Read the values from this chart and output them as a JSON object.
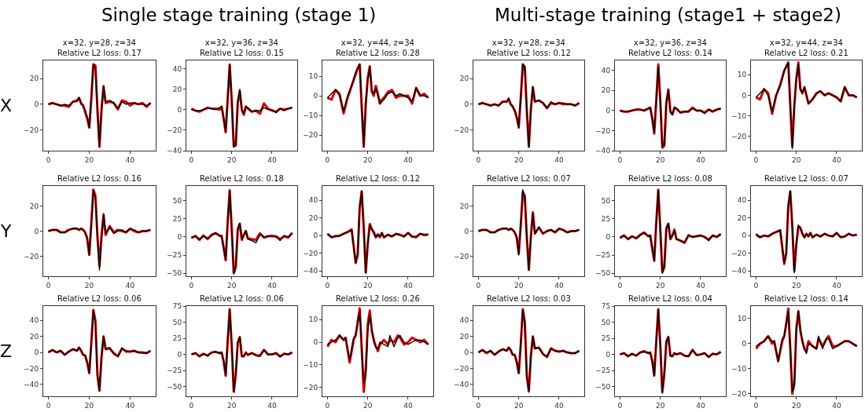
{
  "chart_data": [
    {
      "type": "line",
      "title": "x=32, y=28, z=34\nRelative L2 loss: 0.17",
      "ylabel": "X",
      "annotations": [
        "Single stage training (stage 1)"
      ],
      "x": [
        0,
        2,
        4,
        6,
        8,
        10,
        12,
        14,
        15,
        16,
        17,
        18,
        19,
        20,
        21,
        22,
        23,
        24,
        25,
        26,
        27,
        28,
        30,
        32,
        34,
        36,
        38,
        40,
        42,
        44,
        46,
        48,
        50
      ],
      "xlim": [
        -2.5,
        52.5
      ],
      "xticks": [
        0,
        20,
        40
      ],
      "ylim": [
        -36,
        34
      ],
      "yticks": [
        -20,
        0,
        20
      ],
      "grid": false,
      "legend": false,
      "series": [
        {
          "color": "#000000",
          "values": [
            0,
            1,
            0,
            -1,
            0,
            -1,
            2,
            2,
            5,
            0,
            -1,
            -5,
            -10,
            -18,
            5,
            31,
            29,
            -5,
            -33,
            -5,
            14,
            2,
            3,
            1,
            -3,
            2,
            0,
            1,
            1,
            0,
            0,
            -1,
            1
          ]
        },
        {
          "color": "#d00000",
          "values": [
            0,
            1,
            0,
            -1,
            -1,
            -2,
            2,
            3,
            5,
            1,
            -1,
            -6,
            -11,
            -18,
            4,
            31,
            30,
            -4,
            -33,
            -4,
            14,
            1,
            2,
            1,
            -4,
            3,
            2,
            -1,
            1,
            0,
            1,
            -2,
            1
          ]
        }
      ]
    },
    {
      "type": "line",
      "title": "x=32, y=36, z=34\nRelative L2 loss: 0.15",
      "x": [
        0,
        2,
        4,
        6,
        8,
        10,
        12,
        14,
        15,
        16,
        17,
        18,
        19,
        20,
        21,
        22,
        23,
        24,
        25,
        26,
        27,
        28,
        30,
        32,
        34,
        36,
        38,
        40,
        42,
        44,
        46,
        48,
        50
      ],
      "xlim": [
        -2.5,
        52.5
      ],
      "xticks": [
        0,
        20,
        40
      ],
      "ylim": [
        -40,
        48
      ],
      "yticks": [
        -40,
        -20,
        0,
        20,
        40
      ],
      "grid": false,
      "legend": false,
      "series": [
        {
          "color": "#000000",
          "values": [
            0,
            -1,
            -1,
            0,
            1,
            1,
            0,
            2,
            3,
            -8,
            -22,
            10,
            44,
            10,
            -36,
            -34,
            8,
            20,
            -1,
            -4,
            3,
            2,
            -2,
            -1,
            -1,
            2,
            0,
            0,
            -3,
            1,
            -1,
            1,
            2
          ]
        },
        {
          "color": "#d00000",
          "values": [
            1,
            -1,
            -2,
            0,
            2,
            1,
            1,
            0,
            3,
            -9,
            -22,
            11,
            44,
            9,
            -36,
            -35,
            7,
            18,
            0,
            -5,
            3,
            1,
            -2,
            -1,
            -4,
            6,
            1,
            -1,
            -2,
            1,
            0,
            1,
            2
          ]
        }
      ]
    },
    {
      "type": "line",
      "title": "x=32, y=44, z=34\nRelative L2 loss: 0.28",
      "x": [
        0,
        2,
        4,
        6,
        8,
        10,
        12,
        14,
        15,
        16,
        17,
        18,
        19,
        20,
        21,
        22,
        23,
        24,
        25,
        26,
        27,
        28,
        30,
        32,
        34,
        36,
        38,
        40,
        42,
        44,
        46,
        48,
        50
      ],
      "xlim": [
        -2.5,
        52.5
      ],
      "xticks": [
        0,
        20,
        40
      ],
      "ylim": [
        -28,
        18
      ],
      "yticks": [
        -20,
        -10,
        0,
        10
      ],
      "grid": false,
      "legend": false,
      "series": [
        {
          "color": "#000000",
          "values": [
            -1,
            1,
            3,
            0,
            -8,
            0,
            5,
            12,
            14,
            16,
            -5,
            -26,
            -5,
            8,
            15,
            3,
            1,
            4,
            0,
            -4,
            -3,
            -2,
            1,
            2,
            0,
            1,
            0,
            -1,
            -3,
            4,
            0,
            0,
            -1
          ]
        },
        {
          "color": "#d00000",
          "values": [
            -1,
            -2,
            3,
            1,
            -9,
            -1,
            5,
            11,
            14,
            16,
            -6,
            -26,
            -4,
            9,
            15,
            2,
            0,
            5,
            1,
            -4,
            -2,
            -1,
            2,
            3,
            -1,
            0,
            0,
            0,
            -4,
            4,
            0,
            1,
            -1
          ]
        }
      ]
    },
    {
      "type": "line",
      "title": "x=32, y=28, z=34\nRelative L2 loss: 0.12",
      "annotations": [
        "Multi-stage training (stage1 + stage2)"
      ],
      "x": [
        0,
        2,
        4,
        6,
        8,
        10,
        12,
        14,
        15,
        16,
        17,
        18,
        19,
        20,
        21,
        22,
        23,
        24,
        25,
        26,
        27,
        28,
        30,
        32,
        34,
        36,
        38,
        40,
        42,
        44,
        46,
        48,
        50
      ],
      "xlim": [
        -2.5,
        52.5
      ],
      "xticks": [
        0,
        20,
        40
      ],
      "ylim": [
        -36,
        34
      ],
      "yticks": [
        -20,
        0,
        20
      ],
      "grid": false,
      "legend": false,
      "series": [
        {
          "color": "#000000",
          "values": [
            0,
            1,
            0,
            -1,
            0,
            -1,
            2,
            2,
            5,
            0,
            -1,
            -5,
            -10,
            -18,
            5,
            31,
            29,
            -5,
            -33,
            -5,
            14,
            2,
            3,
            1,
            -3,
            2,
            0,
            1,
            1,
            0,
            0,
            -1,
            1
          ]
        },
        {
          "color": "#d00000",
          "values": [
            0,
            1,
            0,
            -1,
            0,
            -1,
            2,
            2,
            4,
            0,
            -2,
            -5,
            -10,
            -18,
            5,
            31,
            29,
            -5,
            -33,
            -4,
            13,
            2,
            3,
            1,
            -3,
            1,
            0,
            1,
            0,
            0,
            0,
            -1,
            1
          ]
        }
      ]
    },
    {
      "type": "line",
      "title": "x=32, y=36, z=34\nRelative L2 loss: 0.14",
      "x": [
        0,
        2,
        4,
        6,
        8,
        10,
        12,
        14,
        15,
        16,
        17,
        18,
        19,
        20,
        21,
        22,
        23,
        24,
        25,
        26,
        27,
        28,
        30,
        32,
        34,
        36,
        38,
        40,
        42,
        44,
        46,
        48,
        50
      ],
      "xlim": [
        -2.5,
        52.5
      ],
      "xticks": [
        0,
        20,
        40
      ],
      "ylim": [
        -40,
        50
      ],
      "yticks": [
        -40,
        -20,
        0,
        20,
        40
      ],
      "grid": false,
      "legend": false,
      "series": [
        {
          "color": "#000000",
          "values": [
            0,
            -1,
            -1,
            0,
            1,
            1,
            0,
            2,
            3,
            -8,
            -22,
            10,
            44,
            10,
            -36,
            -34,
            8,
            20,
            -1,
            -4,
            3,
            2,
            -2,
            -1,
            -1,
            2,
            0,
            0,
            -3,
            1,
            -1,
            1,
            2
          ]
        },
        {
          "color": "#d00000",
          "values": [
            0,
            -1,
            -1,
            0,
            1,
            1,
            0,
            2,
            3,
            -8,
            -23,
            10,
            46,
            10,
            -37,
            -35,
            8,
            21,
            -1,
            -4,
            3,
            2,
            -2,
            -1,
            -1,
            3,
            0,
            0,
            -2,
            1,
            -1,
            1,
            2
          ]
        }
      ]
    },
    {
      "type": "line",
      "title": "x=32, y=44, z=34\nRelative L2 loss: 0.21",
      "x": [
        0,
        2,
        4,
        6,
        8,
        10,
        12,
        14,
        15,
        16,
        17,
        18,
        19,
        20,
        21,
        22,
        23,
        24,
        25,
        26,
        27,
        28,
        30,
        32,
        34,
        36,
        38,
        40,
        42,
        44,
        46,
        48,
        50
      ],
      "xlim": [
        -2.5,
        52.5
      ],
      "xticks": [
        0,
        20,
        40
      ],
      "ylim": [
        -27,
        17
      ],
      "yticks": [
        -20,
        -10,
        0,
        10
      ],
      "grid": false,
      "legend": false,
      "series": [
        {
          "color": "#000000",
          "values": [
            -1,
            1,
            3,
            0,
            -8,
            0,
            5,
            12,
            14,
            16,
            -5,
            -26,
            -5,
            8,
            15,
            3,
            1,
            4,
            0,
            -4,
            -3,
            -2,
            1,
            2,
            0,
            1,
            0,
            -1,
            -3,
            4,
            0,
            0,
            -1
          ]
        },
        {
          "color": "#d00000",
          "values": [
            -1,
            -2,
            3,
            1,
            -9,
            0,
            5,
            12,
            14,
            16,
            -5,
            -25,
            -5,
            8,
            16,
            3,
            1,
            4,
            0,
            -4,
            -3,
            -2,
            1,
            2,
            0,
            1,
            0,
            -1,
            -3,
            4,
            0,
            0,
            -1
          ]
        }
      ]
    },
    {
      "type": "line",
      "title": "Relative L2 loss: 0.16",
      "ylabel": "Y",
      "x": [
        0,
        2,
        4,
        6,
        8,
        10,
        12,
        14,
        15,
        16,
        17,
        18,
        19,
        20,
        21,
        22,
        23,
        24,
        25,
        26,
        27,
        28,
        30,
        32,
        34,
        36,
        38,
        40,
        42,
        44,
        46,
        48,
        50
      ],
      "xlim": [
        -2.5,
        52.5
      ],
      "xticks": [
        0,
        20,
        40
      ],
      "ylim": [
        -36,
        36
      ],
      "yticks": [
        -20,
        0,
        20
      ],
      "grid": false,
      "legend": false,
      "series": [
        {
          "color": "#000000",
          "values": [
            0,
            1,
            1,
            -1,
            -1,
            1,
            2,
            2,
            1,
            2,
            1,
            -1,
            -5,
            -19,
            5,
            33,
            27,
            -5,
            -31,
            -5,
            14,
            -2,
            3,
            -2,
            0,
            1,
            -1,
            2,
            1,
            -1,
            0,
            0,
            1
          ]
        },
        {
          "color": "#d00000",
          "values": [
            0,
            1,
            1,
            -1,
            -1,
            1,
            2,
            2,
            1,
            2,
            1,
            -1,
            -6,
            -19,
            6,
            33,
            28,
            -4,
            -28,
            -4,
            13,
            -3,
            4,
            -1,
            1,
            0,
            -1,
            2,
            0,
            -1,
            0,
            0,
            1
          ]
        }
      ]
    },
    {
      "type": "line",
      "title": "Relative L2 loss: 0.18",
      "x": [
        0,
        2,
        4,
        6,
        8,
        10,
        12,
        14,
        15,
        16,
        17,
        18,
        19,
        20,
        21,
        22,
        23,
        24,
        25,
        26,
        27,
        28,
        30,
        32,
        34,
        36,
        38,
        40,
        42,
        44,
        46,
        48,
        50
      ],
      "xlim": [
        -2.5,
        52.5
      ],
      "xticks": [
        0,
        20,
        40
      ],
      "ylim": [
        -54,
        70
      ],
      "yticks": [
        -50,
        -25,
        0,
        25,
        50
      ],
      "grid": false,
      "legend": false,
      "series": [
        {
          "color": "#000000",
          "values": [
            -2,
            2,
            -3,
            1,
            -2,
            2,
            6,
            1,
            2,
            -15,
            -32,
            20,
            64,
            10,
            -50,
            -40,
            12,
            19,
            -3,
            2,
            9,
            -3,
            -5,
            -8,
            3,
            0,
            1,
            2,
            0,
            -5,
            2,
            0,
            4
          ]
        },
        {
          "color": "#d00000",
          "values": [
            -1,
            1,
            -4,
            2,
            -3,
            3,
            5,
            2,
            1,
            -15,
            -32,
            21,
            64,
            11,
            -50,
            -42,
            10,
            18,
            -4,
            3,
            8,
            -2,
            -3,
            -4,
            5,
            -1,
            1,
            1,
            1,
            -3,
            1,
            -1,
            6
          ]
        }
      ]
    },
    {
      "type": "line",
      "title": "Relative L2 loss: 0.12",
      "x": [
        0,
        2,
        4,
        6,
        8,
        10,
        12,
        14,
        15,
        16,
        17,
        18,
        19,
        20,
        21,
        22,
        23,
        24,
        25,
        26,
        27,
        28,
        30,
        32,
        34,
        36,
        38,
        40,
        42,
        44,
        46,
        48,
        50
      ],
      "xlim": [
        -2.5,
        52.5
      ],
      "xticks": [
        0,
        20,
        40
      ],
      "ylim": [
        -46,
        56
      ],
      "yticks": [
        -40,
        -20,
        0,
        20,
        40
      ],
      "grid": false,
      "legend": false,
      "series": [
        {
          "color": "#000000",
          "values": [
            2,
            -2,
            0,
            -1,
            2,
            4,
            6,
            -31,
            -20,
            33,
            50,
            10,
            -42,
            -10,
            12,
            8,
            2,
            -2,
            2,
            -1,
            3,
            -2,
            1,
            -1,
            2,
            0,
            -1,
            3,
            -2,
            -1,
            2,
            0,
            1
          ]
        },
        {
          "color": "#d00000",
          "values": [
            2,
            -2,
            -1,
            0,
            2,
            4,
            7,
            -31,
            -22,
            32,
            50,
            9,
            -42,
            -9,
            13,
            7,
            4,
            -2,
            1,
            -2,
            3,
            -2,
            1,
            -1,
            2,
            1,
            -1,
            3,
            -1,
            -2,
            2,
            1,
            1
          ]
        }
      ]
    },
    {
      "type": "line",
      "title": "Relative L2 loss: 0.07",
      "x": [
        0,
        2,
        4,
        6,
        8,
        10,
        12,
        14,
        15,
        16,
        17,
        18,
        19,
        20,
        21,
        22,
        23,
        24,
        25,
        26,
        27,
        28,
        30,
        32,
        34,
        36,
        38,
        40,
        42,
        44,
        46,
        48,
        50
      ],
      "xlim": [
        -2.5,
        52.5
      ],
      "xticks": [
        0,
        20,
        40
      ],
      "ylim": [
        -36,
        36
      ],
      "yticks": [
        -20,
        0,
        20
      ],
      "grid": false,
      "legend": false,
      "series": [
        {
          "color": "#000000",
          "values": [
            0,
            1,
            1,
            -1,
            -1,
            1,
            2,
            2,
            1,
            2,
            1,
            -1,
            -5,
            -19,
            5,
            33,
            27,
            -5,
            -31,
            -5,
            14,
            -2,
            3,
            -2,
            0,
            1,
            -1,
            2,
            1,
            -1,
            0,
            0,
            1
          ]
        },
        {
          "color": "#d00000",
          "values": [
            0,
            1,
            1,
            -1,
            -1,
            1,
            2,
            2,
            1,
            2,
            1,
            -1,
            -5,
            -18,
            5,
            31,
            28,
            -5,
            -31,
            -5,
            15,
            -2,
            3,
            -2,
            0,
            1,
            -1,
            2,
            1,
            -1,
            0,
            0,
            1
          ]
        }
      ]
    },
    {
      "type": "line",
      "title": "Relative L2 loss: 0.08",
      "x": [
        0,
        2,
        4,
        6,
        8,
        10,
        12,
        14,
        15,
        16,
        17,
        18,
        19,
        20,
        21,
        22,
        23,
        24,
        25,
        26,
        27,
        28,
        30,
        32,
        34,
        36,
        38,
        40,
        42,
        44,
        46,
        48,
        50
      ],
      "xlim": [
        -2.5,
        52.5
      ],
      "xticks": [
        0,
        20,
        40
      ],
      "ylim": [
        -54,
        70
      ],
      "yticks": [
        -50,
        -25,
        0,
        25,
        50
      ],
      "grid": false,
      "legend": false,
      "series": [
        {
          "color": "#000000",
          "values": [
            -2,
            2,
            -3,
            1,
            -2,
            2,
            6,
            1,
            2,
            -15,
            -32,
            20,
            64,
            10,
            -50,
            -40,
            12,
            19,
            -3,
            2,
            9,
            -3,
            -5,
            -8,
            3,
            0,
            1,
            2,
            0,
            -5,
            2,
            0,
            4
          ]
        },
        {
          "color": "#d00000",
          "values": [
            -1,
            2,
            -3,
            1,
            -2,
            3,
            6,
            1,
            2,
            -16,
            -33,
            20,
            65,
            10,
            -48,
            -42,
            12,
            18,
            -3,
            2,
            10,
            -3,
            -5,
            -8,
            2,
            0,
            1,
            2,
            0,
            -4,
            2,
            0,
            4
          ]
        }
      ]
    },
    {
      "type": "line",
      "title": "Relative L2 loss: 0.07",
      "x": [
        0,
        2,
        4,
        6,
        8,
        10,
        12,
        14,
        15,
        16,
        17,
        18,
        19,
        20,
        21,
        22,
        23,
        24,
        25,
        26,
        27,
        28,
        30,
        32,
        34,
        36,
        38,
        40,
        42,
        44,
        46,
        48,
        50
      ],
      "xlim": [
        -2.5,
        52.5
      ],
      "xticks": [
        0,
        20,
        40
      ],
      "ylim": [
        -46,
        56
      ],
      "yticks": [
        -40,
        -20,
        0,
        20,
        40
      ],
      "grid": false,
      "legend": false,
      "series": [
        {
          "color": "#000000",
          "values": [
            2,
            -2,
            0,
            -1,
            2,
            4,
            6,
            -31,
            -20,
            33,
            50,
            10,
            -42,
            -10,
            12,
            8,
            2,
            -2,
            2,
            -1,
            3,
            -2,
            1,
            -1,
            2,
            0,
            -1,
            3,
            -2,
            -1,
            2,
            0,
            1
          ]
        },
        {
          "color": "#d00000",
          "values": [
            1,
            -2,
            0,
            -1,
            2,
            4,
            6,
            -32,
            -20,
            33,
            50,
            10,
            -40,
            -10,
            10,
            9,
            2,
            -2,
            2,
            -1,
            3,
            -2,
            1,
            -1,
            2,
            0,
            -1,
            3,
            -2,
            -1,
            2,
            0,
            1
          ]
        }
      ]
    },
    {
      "type": "line",
      "title": "Relative L2 loss: 0.06",
      "ylabel": "Z",
      "x": [
        0,
        2,
        4,
        6,
        8,
        10,
        12,
        14,
        15,
        16,
        17,
        18,
        19,
        20,
        21,
        22,
        23,
        24,
        25,
        26,
        27,
        28,
        30,
        32,
        34,
        36,
        38,
        40,
        42,
        44,
        46,
        48,
        50
      ],
      "xlim": [
        -2.5,
        52.5
      ],
      "xticks": [
        0,
        20,
        40
      ],
      "ylim": [
        -55,
        58
      ],
      "yticks": [
        -40,
        -20,
        0,
        20,
        40
      ],
      "grid": false,
      "legend": false,
      "series": [
        {
          "color": "#000000",
          "values": [
            0,
            3,
            0,
            2,
            -3,
            1,
            4,
            2,
            6,
            3,
            -3,
            -3,
            -12,
            -26,
            10,
            53,
            38,
            -30,
            -48,
            -5,
            20,
            5,
            6,
            -2,
            -5,
            5,
            2,
            1,
            2,
            0,
            -1,
            -1,
            2
          ]
        },
        {
          "color": "#d00000",
          "values": [
            0,
            3,
            0,
            2,
            -3,
            1,
            4,
            2,
            6,
            2,
            -3,
            -4,
            -13,
            -26,
            12,
            53,
            40,
            -28,
            -48,
            -6,
            20,
            4,
            5,
            -1,
            -5,
            5,
            1,
            1,
            2,
            0,
            0,
            -1,
            2
          ]
        }
      ]
    },
    {
      "type": "line",
      "title": "Relative L2 loss: 0.06",
      "x": [
        0,
        2,
        4,
        6,
        8,
        10,
        12,
        14,
        15,
        16,
        17,
        18,
        19,
        20,
        21,
        22,
        23,
        24,
        25,
        26,
        27,
        28,
        30,
        32,
        34,
        36,
        38,
        40,
        42,
        44,
        46,
        48,
        50
      ],
      "xlim": [
        -2.5,
        52.5
      ],
      "xticks": [
        0,
        20,
        40
      ],
      "ylim": [
        -65,
        75
      ],
      "yticks": [
        -50,
        -25,
        0,
        25,
        50,
        75
      ],
      "grid": false,
      "legend": false,
      "series": [
        {
          "color": "#000000",
          "values": [
            0,
            2,
            -3,
            1,
            -2,
            3,
            4,
            2,
            3,
            -10,
            -33,
            20,
            70,
            15,
            -58,
            -30,
            20,
            27,
            -2,
            -3,
            2,
            0,
            2,
            -2,
            -3,
            7,
            -1,
            0,
            2,
            -4,
            1,
            0,
            3
          ]
        },
        {
          "color": "#d00000",
          "values": [
            0,
            2,
            -3,
            1,
            -2,
            3,
            4,
            2,
            3,
            -11,
            -33,
            21,
            70,
            14,
            -58,
            -32,
            18,
            27,
            -3,
            -3,
            3,
            -1,
            2,
            -1,
            -2,
            7,
            0,
            0,
            2,
            -3,
            1,
            0,
            3
          ]
        }
      ]
    },
    {
      "type": "line",
      "title": "Relative L2 loss: 0.26",
      "x": [
        0,
        2,
        4,
        6,
        8,
        9,
        11,
        13,
        14,
        15,
        16,
        17,
        18,
        19,
        20,
        21,
        22,
        23,
        24,
        25,
        26,
        28,
        30,
        31,
        33,
        35,
        36,
        38,
        40,
        42,
        44,
        46,
        48,
        50
      ],
      "xlim": [
        -2.5,
        52.5
      ],
      "xticks": [
        0,
        20,
        40
      ],
      "ylim": [
        -24,
        16
      ],
      "yticks": [
        -20,
        -10,
        0,
        10
      ],
      "grid": false,
      "legend": false,
      "series": [
        {
          "color": "#000000",
          "values": [
            -1,
            0,
            1,
            3,
            1,
            2,
            -8,
            2,
            3,
            8,
            14,
            -2,
            -18,
            -15,
            5,
            12,
            6,
            0,
            -2,
            -3,
            0,
            -1,
            -2,
            3,
            -2,
            2,
            3,
            0,
            -1,
            0,
            1,
            1,
            0,
            -1
          ]
        },
        {
          "color": "#d00000",
          "values": [
            -2,
            1,
            0,
            3,
            1,
            2,
            -9,
            1,
            3,
            9,
            15,
            -3,
            -22,
            -12,
            8,
            14,
            5,
            1,
            -2,
            -4,
            -1,
            1,
            -1,
            1,
            0,
            3,
            2,
            -1,
            0,
            2,
            1,
            0,
            1,
            -1
          ]
        }
      ]
    },
    {
      "type": "line",
      "title": "Relative L2 loss: 0.03",
      "x": [
        0,
        2,
        4,
        6,
        8,
        10,
        12,
        14,
        15,
        16,
        17,
        18,
        19,
        20,
        21,
        22,
        23,
        24,
        25,
        26,
        27,
        28,
        30,
        32,
        34,
        36,
        38,
        40,
        42,
        44,
        46,
        48,
        50
      ],
      "xlim": [
        -2.5,
        52.5
      ],
      "xticks": [
        0,
        20,
        40
      ],
      "ylim": [
        -55,
        58
      ],
      "yticks": [
        -40,
        -20,
        0,
        20,
        40
      ],
      "grid": false,
      "legend": false,
      "series": [
        {
          "color": "#000000",
          "values": [
            0,
            3,
            0,
            2,
            -3,
            1,
            4,
            2,
            6,
            3,
            -3,
            -3,
            -12,
            -26,
            10,
            53,
            38,
            -30,
            -48,
            -5,
            20,
            5,
            6,
            -2,
            -5,
            5,
            2,
            1,
            2,
            0,
            -1,
            -1,
            2
          ]
        },
        {
          "color": "#d00000",
          "values": [
            0,
            3,
            -1,
            2,
            -3,
            1,
            4,
            2,
            6,
            3,
            -3,
            -3,
            -12,
            -26,
            10,
            54,
            38,
            -30,
            -49,
            -5,
            20,
            5,
            6,
            -2,
            -6,
            5,
            2,
            1,
            2,
            0,
            -1,
            -1,
            2
          ]
        }
      ]
    },
    {
      "type": "line",
      "title": "Relative L2 loss: 0.04",
      "x": [
        0,
        2,
        4,
        6,
        8,
        10,
        12,
        14,
        15,
        16,
        17,
        18,
        19,
        20,
        21,
        22,
        23,
        24,
        25,
        26,
        27,
        28,
        30,
        32,
        34,
        36,
        38,
        40,
        42,
        44,
        46,
        48,
        50
      ],
      "xlim": [
        -2.5,
        52.5
      ],
      "xticks": [
        0,
        20,
        40
      ],
      "ylim": [
        -65,
        75
      ],
      "yticks": [
        -50,
        -25,
        0,
        25,
        50,
        75
      ],
      "grid": false,
      "legend": false,
      "series": [
        {
          "color": "#000000",
          "values": [
            0,
            2,
            -3,
            1,
            -2,
            3,
            4,
            2,
            3,
            -10,
            -33,
            20,
            70,
            15,
            -58,
            -30,
            20,
            27,
            -2,
            -3,
            2,
            0,
            2,
            -2,
            -3,
            7,
            -1,
            0,
            2,
            -4,
            1,
            0,
            3
          ]
        },
        {
          "color": "#d00000",
          "values": [
            0,
            2,
            -3,
            1,
            -2,
            3,
            5,
            2,
            3,
            -10,
            -33,
            20,
            70,
            15,
            -59,
            -30,
            20,
            27,
            -2,
            -3,
            2,
            0,
            2,
            -2,
            -3,
            7,
            -1,
            0,
            2,
            -4,
            1,
            0,
            4
          ]
        }
      ]
    },
    {
      "type": "line",
      "title": "Relative L2 loss: 0.14",
      "x": [
        0,
        2,
        4,
        6,
        8,
        9,
        11,
        13,
        14,
        15,
        16,
        17,
        18,
        19,
        20,
        21,
        22,
        23,
        24,
        25,
        26,
        28,
        30,
        31,
        33,
        35,
        36,
        38,
        40,
        42,
        44,
        46,
        48,
        50
      ],
      "xlim": [
        -2.5,
        52.5
      ],
      "xticks": [
        0,
        20,
        40
      ],
      "ylim": [
        -21,
        15
      ],
      "yticks": [
        -20,
        -10,
        0,
        10
      ],
      "grid": false,
      "legend": false,
      "series": [
        {
          "color": "#000000",
          "values": [
            -1,
            0,
            1,
            3,
            1,
            1,
            -7,
            2,
            3,
            8,
            13,
            -2,
            -19,
            -17,
            5,
            13,
            6,
            1,
            -2,
            -4,
            0,
            -1,
            -2,
            3,
            -2,
            2,
            2,
            -2,
            -1,
            0,
            1,
            1,
            0,
            -1
          ]
        },
        {
          "color": "#d00000",
          "values": [
            -2,
            0,
            1,
            3,
            0,
            1,
            -7,
            1,
            3,
            8,
            14,
            -2,
            -20,
            -16,
            6,
            13,
            5,
            1,
            -2,
            -3,
            1,
            -1,
            -2,
            2,
            -1,
            2,
            3,
            -1,
            -1,
            0,
            1,
            1,
            0,
            -1
          ]
        }
      ]
    }
  ]
}
